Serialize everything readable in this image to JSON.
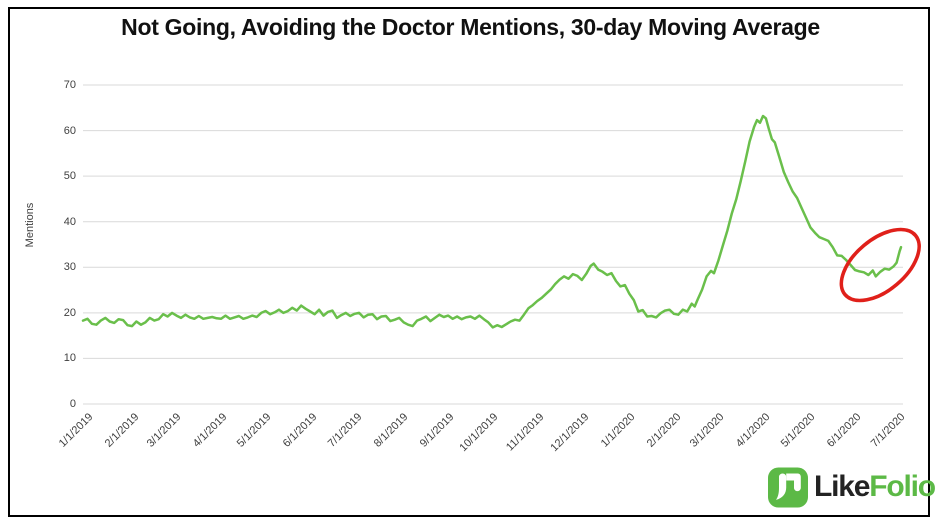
{
  "title": "Not Going, Avoiding the Doctor Mentions, 30-day Moving Average",
  "y_axis_label": "Mentions",
  "colors": {
    "line": "#6abf4b",
    "annotation": "#e0201a",
    "gridline": "#d9d9d9",
    "tick_text": "#404040",
    "title_text": "#111111",
    "logo_green": "#5cb946",
    "logo_dark": "#232323"
  },
  "logo": {
    "text_dark": "Like",
    "text_green": "Folio",
    "icon": "likefolio-monogram-icon"
  },
  "chart_data": {
    "type": "line",
    "title": "Not Going, Avoiding the Doctor Mentions, 30-day Moving Average",
    "xlabel": "",
    "ylabel": "Mentions",
    "ylim": [
      0,
      70
    ],
    "yticks": [
      0,
      10,
      20,
      30,
      40,
      50,
      60,
      70
    ],
    "xticks": [
      "1/1/2019",
      "2/1/2019",
      "3/1/2019",
      "4/1/2019",
      "5/1/2019",
      "6/1/2019",
      "7/1/2019",
      "8/1/2019",
      "9/1/2019",
      "10/1/2019",
      "11/1/2019",
      "12/1/2019",
      "1/1/2020",
      "2/1/2020",
      "3/1/2020",
      "4/1/2020",
      "5/1/2020",
      "6/1/2020",
      "7/1/2020"
    ],
    "grid": "horizontal",
    "legend": "none",
    "series": [
      {
        "name": "Not Going, Avoiding the Doctor Mentions (30-day moving average)",
        "color": "#6abf4b",
        "points": [
          [
            "1/1/2019",
            18.3
          ],
          [
            "1/4/2019",
            18.7
          ],
          [
            "1/7/2019",
            17.6
          ],
          [
            "1/10/2019",
            17.4
          ],
          [
            "1/13/2019",
            18.3
          ],
          [
            "1/16/2019",
            18.9
          ],
          [
            "1/19/2019",
            18.1
          ],
          [
            "1/22/2019",
            17.8
          ],
          [
            "1/25/2019",
            18.6
          ],
          [
            "1/28/2019",
            18.4
          ],
          [
            "1/31/2019",
            17.3
          ],
          [
            "2/3/2019",
            17.1
          ],
          [
            "2/6/2019",
            18.1
          ],
          [
            "2/9/2019",
            17.4
          ],
          [
            "2/12/2019",
            17.9
          ],
          [
            "2/15/2019",
            18.9
          ],
          [
            "2/18/2019",
            18.3
          ],
          [
            "2/21/2019",
            18.6
          ],
          [
            "2/24/2019",
            19.7
          ],
          [
            "2/27/2019",
            19.2
          ],
          [
            "3/2/2019",
            20.0
          ],
          [
            "3/5/2019",
            19.4
          ],
          [
            "3/8/2019",
            18.9
          ],
          [
            "3/11/2019",
            19.6
          ],
          [
            "3/14/2019",
            19.0
          ],
          [
            "3/17/2019",
            18.7
          ],
          [
            "3/20/2019",
            19.3
          ],
          [
            "3/23/2019",
            18.7
          ],
          [
            "3/26/2019",
            18.9
          ],
          [
            "3/29/2019",
            19.1
          ],
          [
            "4/1/2019",
            18.8
          ],
          [
            "4/4/2019",
            18.7
          ],
          [
            "4/7/2019",
            19.4
          ],
          [
            "4/10/2019",
            18.7
          ],
          [
            "4/13/2019",
            19.0
          ],
          [
            "4/16/2019",
            19.3
          ],
          [
            "4/19/2019",
            18.7
          ],
          [
            "4/22/2019",
            19.0
          ],
          [
            "4/25/2019",
            19.4
          ],
          [
            "4/28/2019",
            19.1
          ],
          [
            "5/1/2019",
            20.0
          ],
          [
            "5/4/2019",
            20.4
          ],
          [
            "5/7/2019",
            19.7
          ],
          [
            "5/10/2019",
            20.1
          ],
          [
            "5/13/2019",
            20.7
          ],
          [
            "5/16/2019",
            20.0
          ],
          [
            "5/19/2019",
            20.4
          ],
          [
            "5/22/2019",
            21.1
          ],
          [
            "5/25/2019",
            20.5
          ],
          [
            "5/28/2019",
            21.6
          ],
          [
            "5/31/2019",
            20.9
          ],
          [
            "6/3/2019",
            20.3
          ],
          [
            "6/6/2019",
            19.7
          ],
          [
            "6/9/2019",
            20.7
          ],
          [
            "6/12/2019",
            19.4
          ],
          [
            "6/15/2019",
            20.2
          ],
          [
            "6/18/2019",
            20.5
          ],
          [
            "6/21/2019",
            18.9
          ],
          [
            "6/24/2019",
            19.5
          ],
          [
            "6/27/2019",
            20.0
          ],
          [
            "6/30/2019",
            19.3
          ],
          [
            "7/3/2019",
            19.8
          ],
          [
            "7/6/2019",
            20.0
          ],
          [
            "7/9/2019",
            19.0
          ],
          [
            "7/12/2019",
            19.6
          ],
          [
            "7/15/2019",
            19.7
          ],
          [
            "7/18/2019",
            18.6
          ],
          [
            "7/21/2019",
            19.2
          ],
          [
            "7/24/2019",
            19.3
          ],
          [
            "7/27/2019",
            18.2
          ],
          [
            "7/30/2019",
            18.5
          ],
          [
            "8/2/2019",
            18.9
          ],
          [
            "8/5/2019",
            17.9
          ],
          [
            "8/8/2019",
            17.4
          ],
          [
            "8/11/2019",
            17.1
          ],
          [
            "8/14/2019",
            18.3
          ],
          [
            "8/17/2019",
            18.7
          ],
          [
            "8/20/2019",
            19.2
          ],
          [
            "8/23/2019",
            18.2
          ],
          [
            "8/26/2019",
            18.9
          ],
          [
            "8/29/2019",
            19.6
          ],
          [
            "9/1/2019",
            19.1
          ],
          [
            "9/4/2019",
            19.4
          ],
          [
            "9/7/2019",
            18.7
          ],
          [
            "9/10/2019",
            19.2
          ],
          [
            "9/13/2019",
            18.6
          ],
          [
            "9/16/2019",
            19.0
          ],
          [
            "9/19/2019",
            19.2
          ],
          [
            "9/22/2019",
            18.7
          ],
          [
            "9/25/2019",
            19.4
          ],
          [
            "9/28/2019",
            18.6
          ],
          [
            "10/1/2019",
            17.9
          ],
          [
            "10/4/2019",
            16.8
          ],
          [
            "10/7/2019",
            17.3
          ],
          [
            "10/10/2019",
            16.9
          ],
          [
            "10/13/2019",
            17.5
          ],
          [
            "10/16/2019",
            18.1
          ],
          [
            "10/19/2019",
            18.5
          ],
          [
            "10/22/2019",
            18.3
          ],
          [
            "10/25/2019",
            19.6
          ],
          [
            "10/28/2019",
            21.0
          ],
          [
            "10/31/2019",
            21.7
          ],
          [
            "11/3/2019",
            22.6
          ],
          [
            "11/6/2019",
            23.3
          ],
          [
            "11/9/2019",
            24.2
          ],
          [
            "11/12/2019",
            25.1
          ],
          [
            "11/15/2019",
            26.3
          ],
          [
            "11/18/2019",
            27.3
          ],
          [
            "11/21/2019",
            28.0
          ],
          [
            "11/24/2019",
            27.5
          ],
          [
            "11/27/2019",
            28.5
          ],
          [
            "11/30/2019",
            28.1
          ],
          [
            "12/3/2019",
            27.2
          ],
          [
            "12/6/2019",
            28.6
          ],
          [
            "12/9/2019",
            30.3
          ],
          [
            "12/11/2019",
            30.8
          ],
          [
            "12/14/2019",
            29.5
          ],
          [
            "12/17/2019",
            29.0
          ],
          [
            "12/20/2019",
            28.3
          ],
          [
            "12/23/2019",
            28.7
          ],
          [
            "12/26/2019",
            27.0
          ],
          [
            "12/29/2019",
            25.8
          ],
          [
            "1/1/2020",
            26.1
          ],
          [
            "1/4/2020",
            24.2
          ],
          [
            "1/7/2020",
            22.8
          ],
          [
            "1/10/2020",
            20.3
          ],
          [
            "1/13/2020",
            20.6
          ],
          [
            "1/16/2020",
            19.2
          ],
          [
            "1/19/2020",
            19.3
          ],
          [
            "1/22/2020",
            19.0
          ],
          [
            "1/25/2020",
            19.9
          ],
          [
            "1/28/2020",
            20.5
          ],
          [
            "1/31/2020",
            20.7
          ],
          [
            "2/3/2020",
            19.8
          ],
          [
            "2/6/2020",
            19.6
          ],
          [
            "2/9/2020",
            20.7
          ],
          [
            "2/12/2020",
            20.3
          ],
          [
            "2/15/2020",
            22.0
          ],
          [
            "2/17/2020",
            21.4
          ],
          [
            "2/19/2020",
            22.9
          ],
          [
            "2/22/2020",
            25.1
          ],
          [
            "2/25/2020",
            28.0
          ],
          [
            "2/28/2020",
            29.2
          ],
          [
            "3/1/2020",
            28.7
          ],
          [
            "3/4/2020",
            31.5
          ],
          [
            "3/7/2020",
            34.8
          ],
          [
            "3/10/2020",
            38.0
          ],
          [
            "3/13/2020",
            41.8
          ],
          [
            "3/16/2020",
            44.9
          ],
          [
            "3/19/2020",
            48.9
          ],
          [
            "3/22/2020",
            53.2
          ],
          [
            "3/25/2020",
            57.6
          ],
          [
            "3/28/2020",
            60.8
          ],
          [
            "3/30/2020",
            62.3
          ],
          [
            "4/1/2020",
            61.7
          ],
          [
            "4/3/2020",
            63.2
          ],
          [
            "4/5/2020",
            62.7
          ],
          [
            "4/7/2020",
            60.3
          ],
          [
            "4/9/2020",
            58.1
          ],
          [
            "4/11/2020",
            57.4
          ],
          [
            "4/14/2020",
            54.2
          ],
          [
            "4/17/2020",
            50.9
          ],
          [
            "4/20/2020",
            48.7
          ],
          [
            "4/23/2020",
            46.6
          ],
          [
            "4/26/2020",
            45.2
          ],
          [
            "4/29/2020",
            43.0
          ],
          [
            "5/2/2020",
            40.9
          ],
          [
            "5/5/2020",
            38.7
          ],
          [
            "5/8/2020",
            37.6
          ],
          [
            "5/11/2020",
            36.6
          ],
          [
            "5/14/2020",
            36.2
          ],
          [
            "5/17/2020",
            35.8
          ],
          [
            "5/20/2020",
            34.4
          ],
          [
            "5/23/2020",
            32.6
          ],
          [
            "5/26/2020",
            32.5
          ],
          [
            "5/29/2020",
            31.6
          ],
          [
            "6/1/2020",
            30.5
          ],
          [
            "6/4/2020",
            29.4
          ],
          [
            "6/7/2020",
            29.1
          ],
          [
            "6/10/2020",
            28.9
          ],
          [
            "6/13/2020",
            28.3
          ],
          [
            "6/16/2020",
            29.3
          ],
          [
            "6/18/2020",
            28.0
          ],
          [
            "6/21/2020",
            29.0
          ],
          [
            "6/24/2020",
            29.7
          ],
          [
            "6/27/2020",
            29.5
          ],
          [
            "6/30/2020",
            30.2
          ],
          [
            "7/2/2020",
            31.0
          ],
          [
            "7/4/2020",
            33.5
          ],
          [
            "7/5/2020",
            34.4
          ]
        ]
      }
    ],
    "annotation": {
      "type": "ellipse",
      "center_date": "6/21/2020",
      "center_value": 30.5,
      "rx_days": 31,
      "ry_units": 5.6,
      "rotation_deg": -40,
      "color": "#e0201a"
    }
  }
}
